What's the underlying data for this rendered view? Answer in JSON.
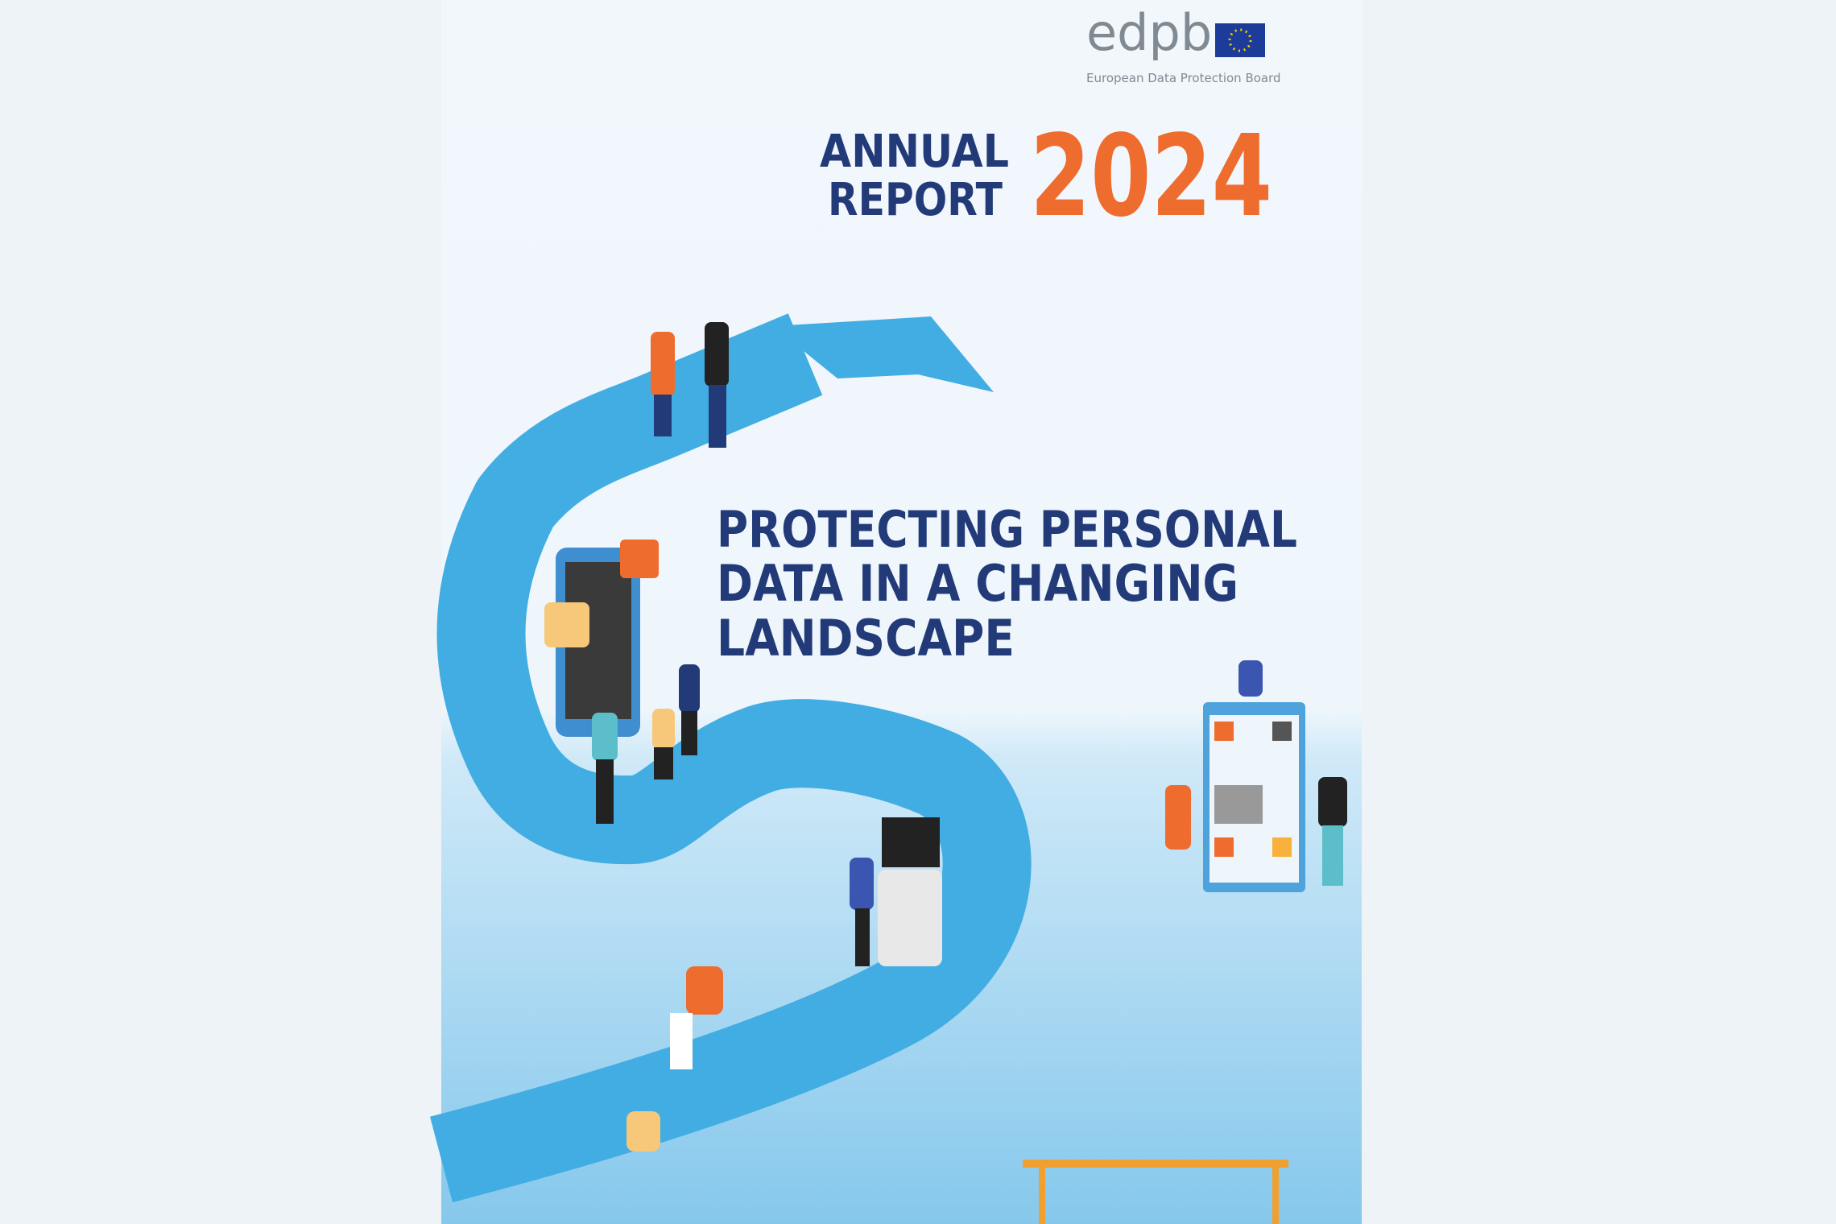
{
  "logo": {
    "name": "edpb",
    "subtitle": "European Data Protection Board"
  },
  "header": {
    "line1": "ANNUAL",
    "line2": "REPORT",
    "year": "2024"
  },
  "title": {
    "lines": [
      "PROTECTING PERSONAL",
      "DATA IN A CHANGING",
      "LANDSCAPE"
    ]
  }
}
